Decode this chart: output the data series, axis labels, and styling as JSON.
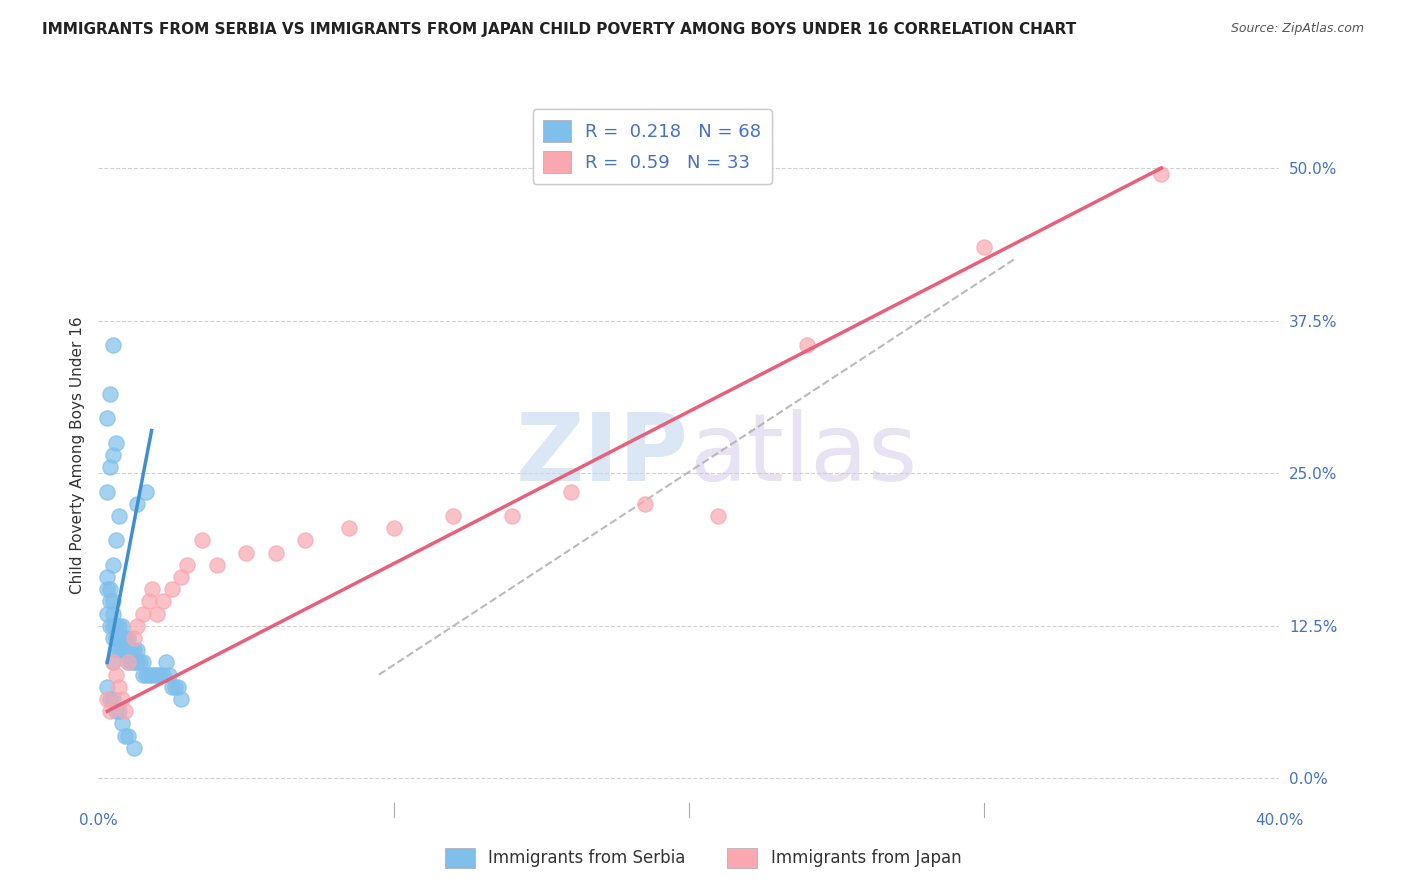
{
  "title": "IMMIGRANTS FROM SERBIA VS IMMIGRANTS FROM JAPAN CHILD POVERTY AMONG BOYS UNDER 16 CORRELATION CHART",
  "source": "Source: ZipAtlas.com",
  "ylabel": "Child Poverty Among Boys Under 16",
  "xlim": [
    0.0,
    0.4
  ],
  "ylim": [
    -0.02,
    0.55
  ],
  "yticks": [
    0.0,
    0.125,
    0.25,
    0.375,
    0.5
  ],
  "ytick_labels": [
    "0.0%",
    "12.5%",
    "25.0%",
    "37.5%",
    "50.0%"
  ],
  "xticks": [
    0.0,
    0.1,
    0.2,
    0.3,
    0.4
  ],
  "xtick_labels": [
    "0.0%",
    "",
    "",
    "",
    "40.0%"
  ],
  "serbia_color": "#7fbfec",
  "japan_color": "#f9a8b0",
  "serbia_line_color": "#4090d0",
  "japan_line_color": "#e8607a",
  "serbia_R": 0.218,
  "serbia_N": 68,
  "japan_R": 0.59,
  "japan_N": 33,
  "watermark_zip": "ZIP",
  "watermark_atlas": "atlas",
  "background_color": "#ffffff",
  "grid_color": "#cccccc",
  "title_fontsize": 11,
  "axis_label_fontsize": 11,
  "tick_fontsize": 11,
  "serbia_scatter_x": [
    0.003,
    0.003,
    0.004,
    0.004,
    0.005,
    0.005,
    0.005,
    0.005,
    0.005,
    0.006,
    0.006,
    0.006,
    0.007,
    0.007,
    0.007,
    0.008,
    0.008,
    0.008,
    0.009,
    0.009,
    0.01,
    0.01,
    0.01,
    0.011,
    0.011,
    0.012,
    0.012,
    0.013,
    0.013,
    0.014,
    0.015,
    0.015,
    0.016,
    0.017,
    0.018,
    0.019,
    0.02,
    0.021,
    0.022,
    0.023,
    0.024,
    0.025,
    0.026,
    0.027,
    0.028,
    0.003,
    0.004,
    0.005,
    0.006,
    0.007,
    0.008,
    0.009,
    0.01,
    0.012,
    0.003,
    0.004,
    0.005,
    0.006,
    0.007,
    0.003,
    0.004,
    0.005,
    0.006,
    0.003,
    0.004,
    0.005,
    0.013,
    0.016
  ],
  "serbia_scatter_y": [
    0.155,
    0.135,
    0.145,
    0.125,
    0.145,
    0.135,
    0.125,
    0.115,
    0.095,
    0.125,
    0.115,
    0.105,
    0.125,
    0.115,
    0.105,
    0.125,
    0.115,
    0.105,
    0.115,
    0.105,
    0.115,
    0.105,
    0.095,
    0.105,
    0.095,
    0.105,
    0.095,
    0.105,
    0.095,
    0.095,
    0.095,
    0.085,
    0.085,
    0.085,
    0.085,
    0.085,
    0.085,
    0.085,
    0.085,
    0.095,
    0.085,
    0.075,
    0.075,
    0.075,
    0.065,
    0.075,
    0.065,
    0.065,
    0.055,
    0.055,
    0.045,
    0.035,
    0.035,
    0.025,
    0.165,
    0.155,
    0.175,
    0.195,
    0.215,
    0.235,
    0.255,
    0.265,
    0.275,
    0.295,
    0.315,
    0.355,
    0.225,
    0.235
  ],
  "japan_scatter_x": [
    0.003,
    0.004,
    0.005,
    0.006,
    0.007,
    0.008,
    0.009,
    0.01,
    0.012,
    0.013,
    0.015,
    0.017,
    0.018,
    0.02,
    0.022,
    0.025,
    0.028,
    0.03,
    0.035,
    0.04,
    0.05,
    0.06,
    0.07,
    0.085,
    0.1,
    0.12,
    0.14,
    0.16,
    0.185,
    0.21,
    0.24,
    0.3,
    0.36
  ],
  "japan_scatter_y": [
    0.065,
    0.055,
    0.095,
    0.085,
    0.075,
    0.065,
    0.055,
    0.095,
    0.115,
    0.125,
    0.135,
    0.145,
    0.155,
    0.135,
    0.145,
    0.155,
    0.165,
    0.175,
    0.195,
    0.175,
    0.185,
    0.185,
    0.195,
    0.205,
    0.205,
    0.215,
    0.215,
    0.235,
    0.225,
    0.215,
    0.355,
    0.435,
    0.495
  ],
  "serbia_line_x": [
    0.003,
    0.018
  ],
  "serbia_line_y": [
    0.095,
    0.285
  ],
  "japan_line_x": [
    0.003,
    0.36
  ],
  "japan_line_y": [
    0.055,
    0.5
  ],
  "ref_line_x": [
    0.095,
    0.31
  ],
  "ref_line_y": [
    0.085,
    0.425
  ]
}
